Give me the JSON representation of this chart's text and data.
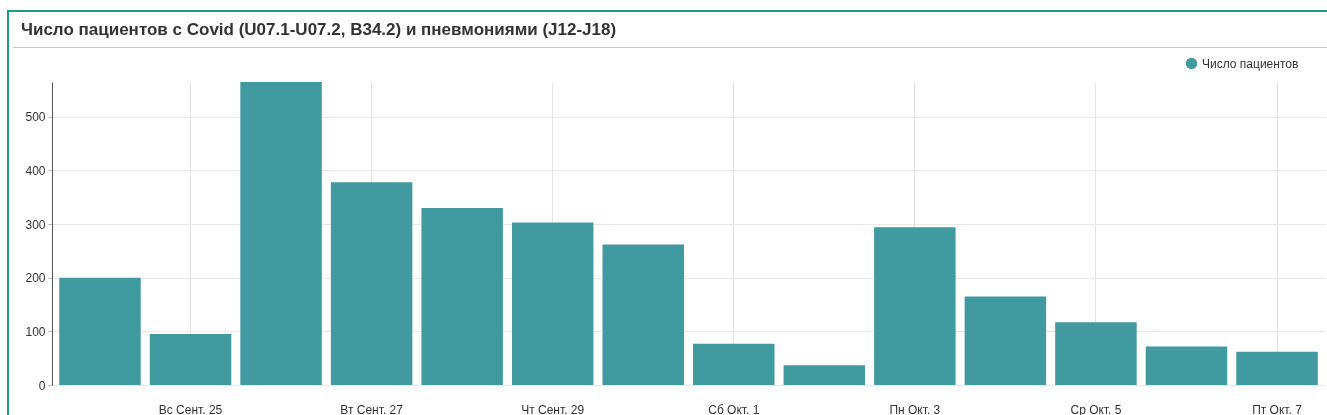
{
  "chart_data": {
    "type": "bar",
    "title": "Число пациентов с Covid (U07.1-U07.2, B34.2) и пневмониями (J12-J18)",
    "categories": [
      null,
      "Вс Сент. 25",
      null,
      "Вт Сент. 27",
      null,
      "Чт Сент. 29",
      null,
      "Сб Окт. 1",
      null,
      "Пн Окт. 3",
      null,
      "Ср Окт. 5",
      null,
      "Пт Окт. 7"
    ],
    "series": [
      {
        "name": "Число пациентов",
        "color": "#419a9f",
        "values": [
          200,
          95,
          565,
          378,
          330,
          303,
          262,
          77,
          37,
          294,
          165,
          117,
          72,
          62
        ]
      }
    ],
    "ylim": [
      0,
      565
    ],
    "yticks": [
      0,
      100,
      200,
      300,
      400,
      500
    ],
    "grid": true,
    "legend": "top right"
  }
}
